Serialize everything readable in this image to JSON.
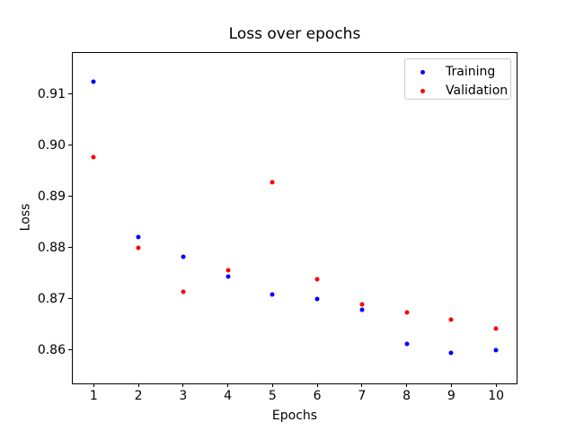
{
  "chart_data": {
    "type": "scatter",
    "title": "Loss over epochs",
    "xlabel": "Epochs",
    "ylabel": "Loss",
    "x": [
      1,
      2,
      3,
      4,
      5,
      6,
      7,
      8,
      9,
      10
    ],
    "series": [
      {
        "name": "Training",
        "color": "#0000ff",
        "values": [
          0.9124,
          0.8821,
          0.8782,
          0.8743,
          0.8709,
          0.8699,
          0.8679,
          0.8612,
          0.8594,
          0.86
        ]
      },
      {
        "name": "Validation",
        "color": "#ff0000",
        "values": [
          0.8976,
          0.88,
          0.8714,
          0.8756,
          0.8927,
          0.8738,
          0.8689,
          0.8673,
          0.8659,
          0.8642
        ]
      }
    ],
    "xlim": [
      0.51,
      10.48
    ],
    "ylim": [
      0.8535,
      0.9182
    ],
    "x_ticks": [
      1,
      2,
      3,
      4,
      5,
      6,
      7,
      8,
      9,
      10
    ],
    "x_tick_labels": [
      "1",
      "2",
      "3",
      "4",
      "5",
      "6",
      "7",
      "8",
      "9",
      "10"
    ],
    "y_ticks": [
      0.86,
      0.87,
      0.88,
      0.89,
      0.9,
      0.91
    ],
    "y_tick_labels": [
      "0.86",
      "0.87",
      "0.88",
      "0.89",
      "0.90",
      "0.91"
    ],
    "grid": false,
    "legend_position": "upper right",
    "marker": "dot",
    "axis_color": "#000000",
    "legend_border_color": "#cccccc"
  }
}
